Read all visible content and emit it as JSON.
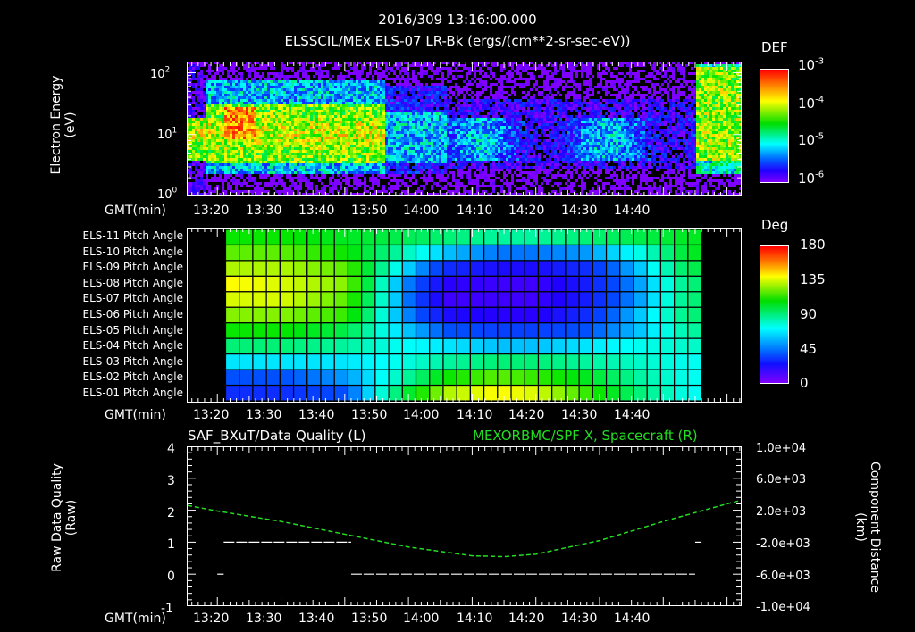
{
  "header": {
    "timestamp": "2016/309 13:16:00.000",
    "title": "ELSSCIL/MEx ELS-07 LR-Bk  (ergs/(cm**2-sr-sec-eV))"
  },
  "time_axis": {
    "label": "GMT(min)",
    "ticks": [
      "13:20",
      "13:30",
      "13:40",
      "13:50",
      "14:00",
      "14:10",
      "14:20",
      "14:30",
      "14:40"
    ]
  },
  "panel1": {
    "ylabel_line1": "Electron Energy",
    "ylabel_line2": "(eV)",
    "yticks": [
      {
        "base": "10",
        "exp": "2"
      },
      {
        "base": "10",
        "exp": "1"
      },
      {
        "base": "10",
        "exp": "0"
      }
    ],
    "colorbar": {
      "title": "DEF",
      "ticks": [
        {
          "base": "10",
          "exp": "-3"
        },
        {
          "base": "10",
          "exp": "-4"
        },
        {
          "base": "10",
          "exp": "-5"
        },
        {
          "base": "10",
          "exp": "-6"
        }
      ]
    }
  },
  "panel2": {
    "row_labels": [
      "ELS-11 Pitch Angle",
      "ELS-10 Pitch Angle",
      "ELS-09 Pitch Angle",
      "ELS-08 Pitch Angle",
      "ELS-07 Pitch Angle",
      "ELS-06 Pitch Angle",
      "ELS-05 Pitch Angle",
      "ELS-04 Pitch Angle",
      "ELS-03 Pitch Angle",
      "ELS-02 Pitch Angle",
      "ELS-01 Pitch Angle"
    ],
    "colorbar": {
      "title": "Deg",
      "ticks": [
        "180",
        "135",
        "90",
        "45",
        "0"
      ]
    }
  },
  "panel3": {
    "title_left": "SAF_BXuT/Data Quality (L)",
    "title_right": "MEXORBMC/SPF X, Spacecraft (R)",
    "title_right_color": "#22dd22",
    "ylabel_left_line1": "Raw Data Quality",
    "ylabel_left_line2": "(Raw)",
    "ylabel_right_line1": "Component Distance",
    "ylabel_right_line2": "(km)",
    "yticks_left": [
      "4",
      "3",
      "2",
      "1",
      "0",
      "-1"
    ],
    "yticks_right": [
      "1.0e+04",
      "6.0e+03",
      "2.0e+03",
      "-2.0e+03",
      "-6.0e+03",
      "-1.0e+04"
    ]
  },
  "chart_data": [
    {
      "type": "heatmap",
      "title": "ELSSCIL/MEx ELS-07 LR-Bk (ergs/(cm**2-sr-sec-eV))",
      "subtitle": "2016/309 13:16:00.000",
      "xlabel": "GMT(min)",
      "ylabel": "Electron Energy (eV)",
      "yscale": "log",
      "ylim": [
        1,
        150
      ],
      "xlim": [
        "13:15",
        "14:42"
      ],
      "colorbar": {
        "label": "DEF",
        "scale": "log",
        "range": [
          1e-06,
          0.001
        ]
      },
      "features": [
        {
          "time": "13:15-13:46",
          "energy_eV": "4-30",
          "level": "~1e-4 (green)"
        },
        {
          "time": "13:22-13:25",
          "energy_eV": "10-25",
          "level": "~5e-4 (orange/red peak)"
        },
        {
          "time": "13:46-13:56",
          "energy_eV": "4-20",
          "level": "~1e-5 (cyan)"
        },
        {
          "time": "13:56-14:34",
          "energy_eV": "4-20",
          "level": "~3e-6 to 1e-5 (blue/cyan patches)"
        },
        {
          "time": "14:35-14:42",
          "energy_eV": "5-100",
          "level": "~1e-4 (green/yellow)"
        }
      ]
    },
    {
      "type": "heatmap",
      "title": "Pitch Angle",
      "xlabel": "GMT(min)",
      "rows": [
        "ELS-11",
        "ELS-10",
        "ELS-09",
        "ELS-08",
        "ELS-07",
        "ELS-06",
        "ELS-05",
        "ELS-04",
        "ELS-03",
        "ELS-02",
        "ELS-01"
      ],
      "xlim": [
        "13:15",
        "14:42"
      ],
      "data_span": [
        "13:21",
        "14:36"
      ],
      "colorbar": {
        "label": "Deg",
        "range": [
          0,
          180
        ],
        "ticks": [
          0,
          45,
          90,
          135,
          180
        ]
      },
      "approx_values_deg": {
        "ELS-11": [
          100,
          100,
          95,
          90,
          85,
          80,
          80,
          85,
          90,
          95
        ],
        "ELS-10": [
          110,
          110,
          100,
          80,
          60,
          50,
          50,
          55,
          70,
          95
        ],
        "ELS-09": [
          120,
          120,
          110,
          70,
          35,
          25,
          25,
          35,
          60,
          90
        ],
        "ELS-08": [
          130,
          125,
          115,
          60,
          20,
          15,
          15,
          30,
          55,
          85
        ],
        "ELS-07": [
          125,
          125,
          110,
          60,
          15,
          15,
          15,
          30,
          55,
          85
        ],
        "ELS-06": [
          115,
          115,
          105,
          60,
          25,
          20,
          20,
          35,
          60,
          85
        ],
        "ELS-05": [
          100,
          100,
          90,
          65,
          45,
          40,
          40,
          45,
          60,
          80
        ],
        "ELS-04": [
          85,
          85,
          80,
          70,
          65,
          60,
          60,
          65,
          70,
          75
        ],
        "ELS-03": [
          65,
          65,
          65,
          70,
          80,
          85,
          85,
          80,
          75,
          70
        ],
        "ELS-02": [
          45,
          45,
          55,
          75,
          100,
          110,
          105,
          95,
          80,
          70
        ],
        "ELS-01": [
          35,
          35,
          45,
          85,
          120,
          130,
          125,
          105,
          85,
          70
        ]
      },
      "approx_times": [
        "13:22",
        "13:30",
        "13:40",
        "13:48",
        "13:56",
        "14:04",
        "14:10",
        "14:18",
        "14:26",
        "14:34"
      ]
    },
    {
      "type": "line",
      "title_left": "SAF_BXuT/Data Quality (L)",
      "title_right": "MEXORBMC/SPF X, Spacecraft (R)",
      "xlabel": "GMT(min)",
      "ylabel_left": "Raw Data Quality (Raw)",
      "ylabel_right": "Component Distance (km)",
      "ylim_left": [
        -1,
        4
      ],
      "ylim_right": [
        -10000,
        10000
      ],
      "x": [
        "13:15",
        "13:20",
        "13:30",
        "13:40",
        "13:50",
        "14:00",
        "14:05",
        "14:10",
        "14:20",
        "14:30",
        "14:40",
        "14:42"
      ],
      "series": [
        {
          "name": "MEXORBMC/SPF X, Spacecraft",
          "axis": "right",
          "color": "#22dd22",
          "style": "dashed",
          "values": [
            2600,
            1900,
            600,
            -1000,
            -2600,
            -3700,
            -3800,
            -3500,
            -1800,
            600,
            2800,
            3200
          ]
        },
        {
          "name": "SAF_BXuT/Data Quality",
          "axis": "left",
          "color": "#ffffff",
          "style": "dashed",
          "segments": [
            {
              "from": "13:20",
              "to": "13:21",
              "value": 0
            },
            {
              "from": "13:21",
              "to": "13:41",
              "value": 1
            },
            {
              "from": "13:41",
              "to": "14:35",
              "value": 0
            },
            {
              "from": "14:35",
              "to": "14:36",
              "value": 1
            }
          ]
        }
      ]
    }
  ]
}
